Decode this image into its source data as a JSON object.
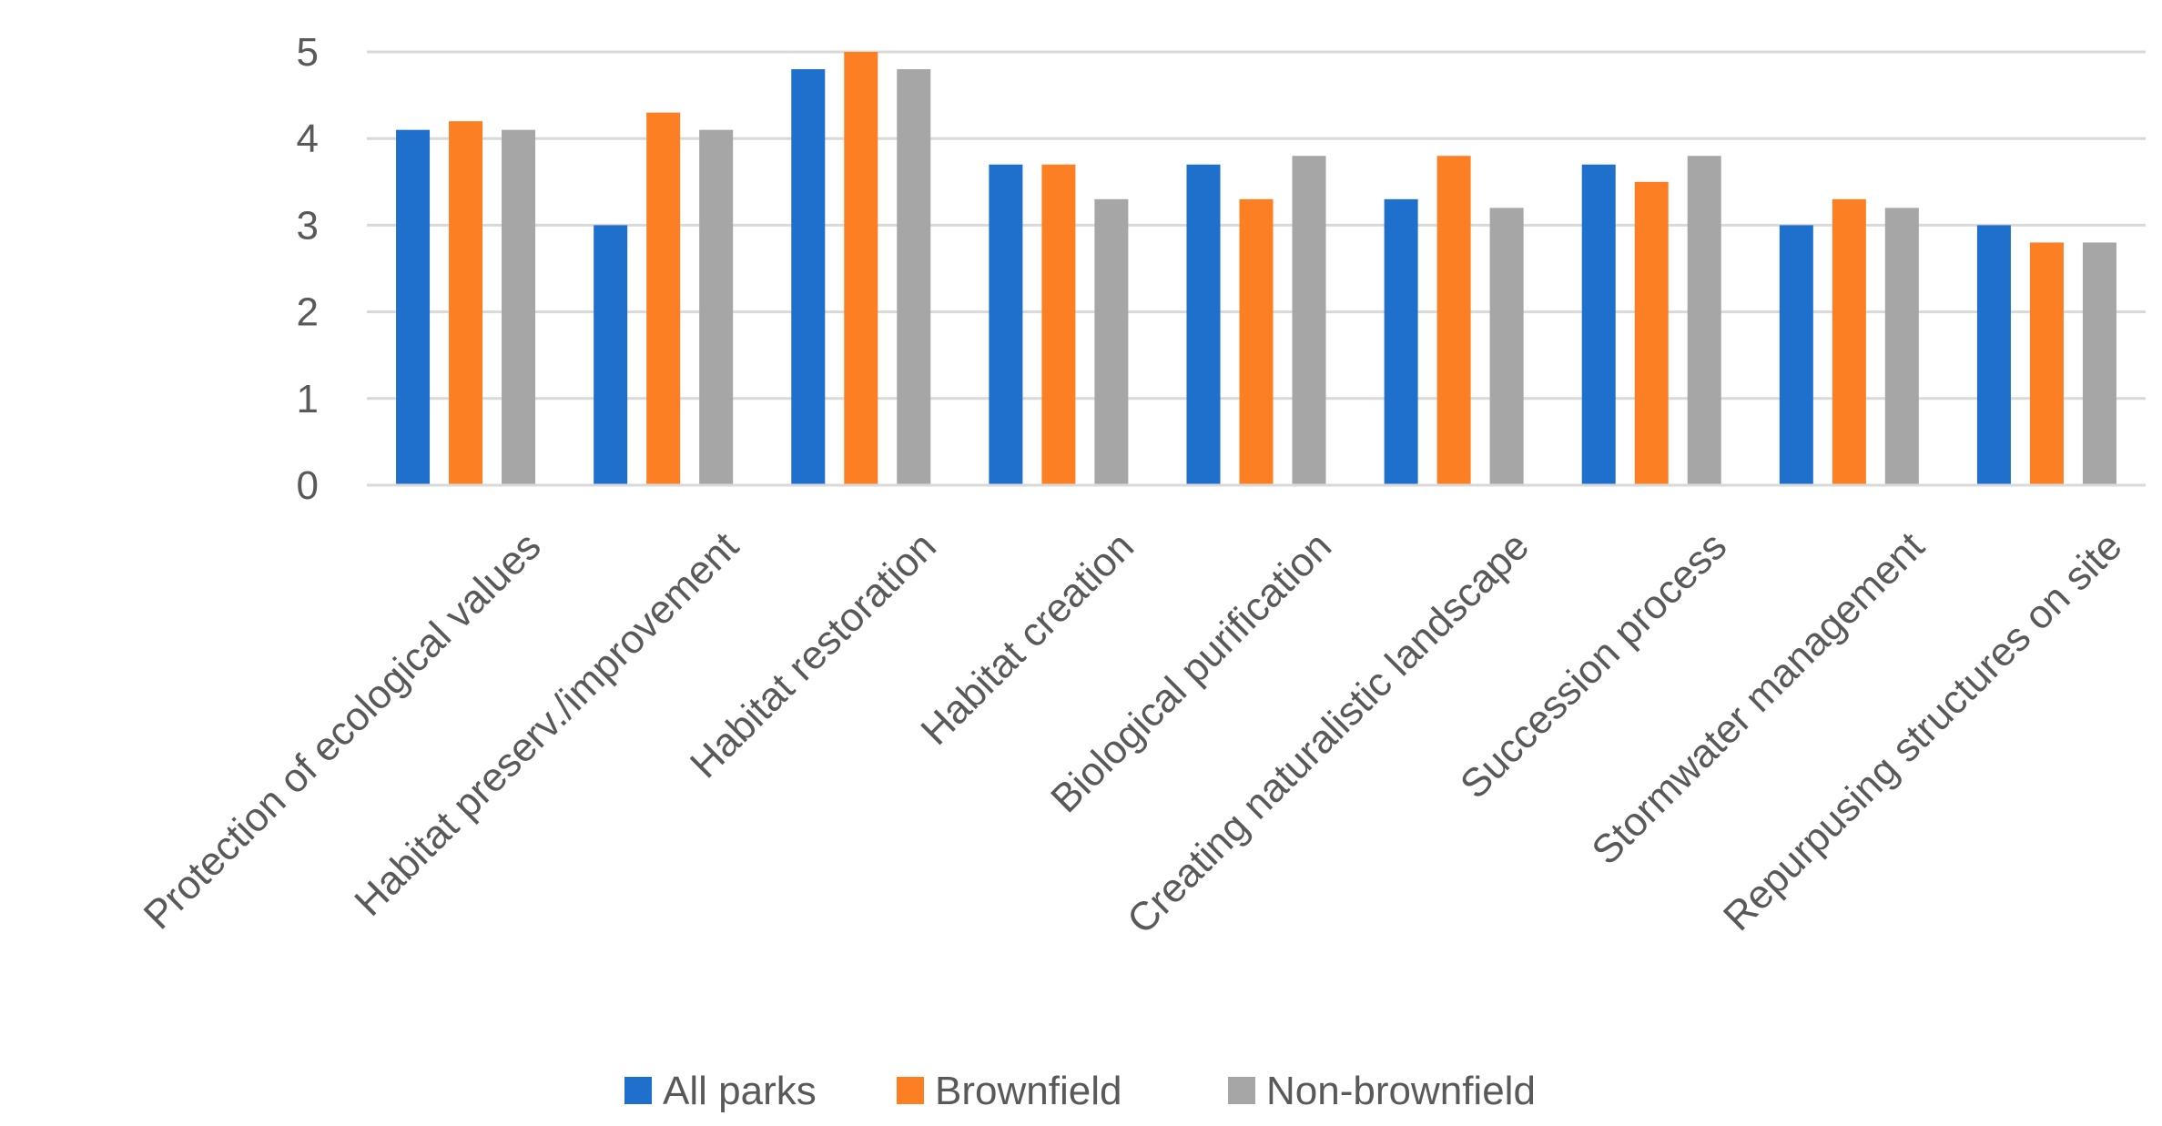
{
  "chart_data": {
    "type": "bar",
    "title": "",
    "xlabel": "",
    "ylabel": "",
    "ylim": [
      0,
      5
    ],
    "yticks": [
      0,
      1,
      2,
      3,
      4,
      5
    ],
    "grid": true,
    "legend_position": "bottom",
    "categories": [
      "Protection of ecological values",
      "Habitat preserv./improvement",
      "Habitat restoration",
      "Habitat creation",
      "Biological purification",
      "Creating naturalistic landscape",
      "Succession process",
      "Stormwater management",
      "Repurpusing structures on site"
    ],
    "series": [
      {
        "name": "All parks",
        "color": "#1f6fcc",
        "values": [
          4.1,
          3.0,
          4.8,
          3.7,
          3.7,
          3.3,
          3.7,
          3.0,
          3.0
        ]
      },
      {
        "name": "Brownfield",
        "color": "#fd7f23",
        "values": [
          4.2,
          4.3,
          5.0,
          3.7,
          3.3,
          3.8,
          3.5,
          3.3,
          2.8
        ]
      },
      {
        "name": "Non-brownfield",
        "color": "#a6a6a6",
        "values": [
          4.1,
          4.1,
          4.8,
          3.3,
          3.8,
          3.2,
          3.8,
          3.2,
          2.8
        ]
      }
    ]
  }
}
